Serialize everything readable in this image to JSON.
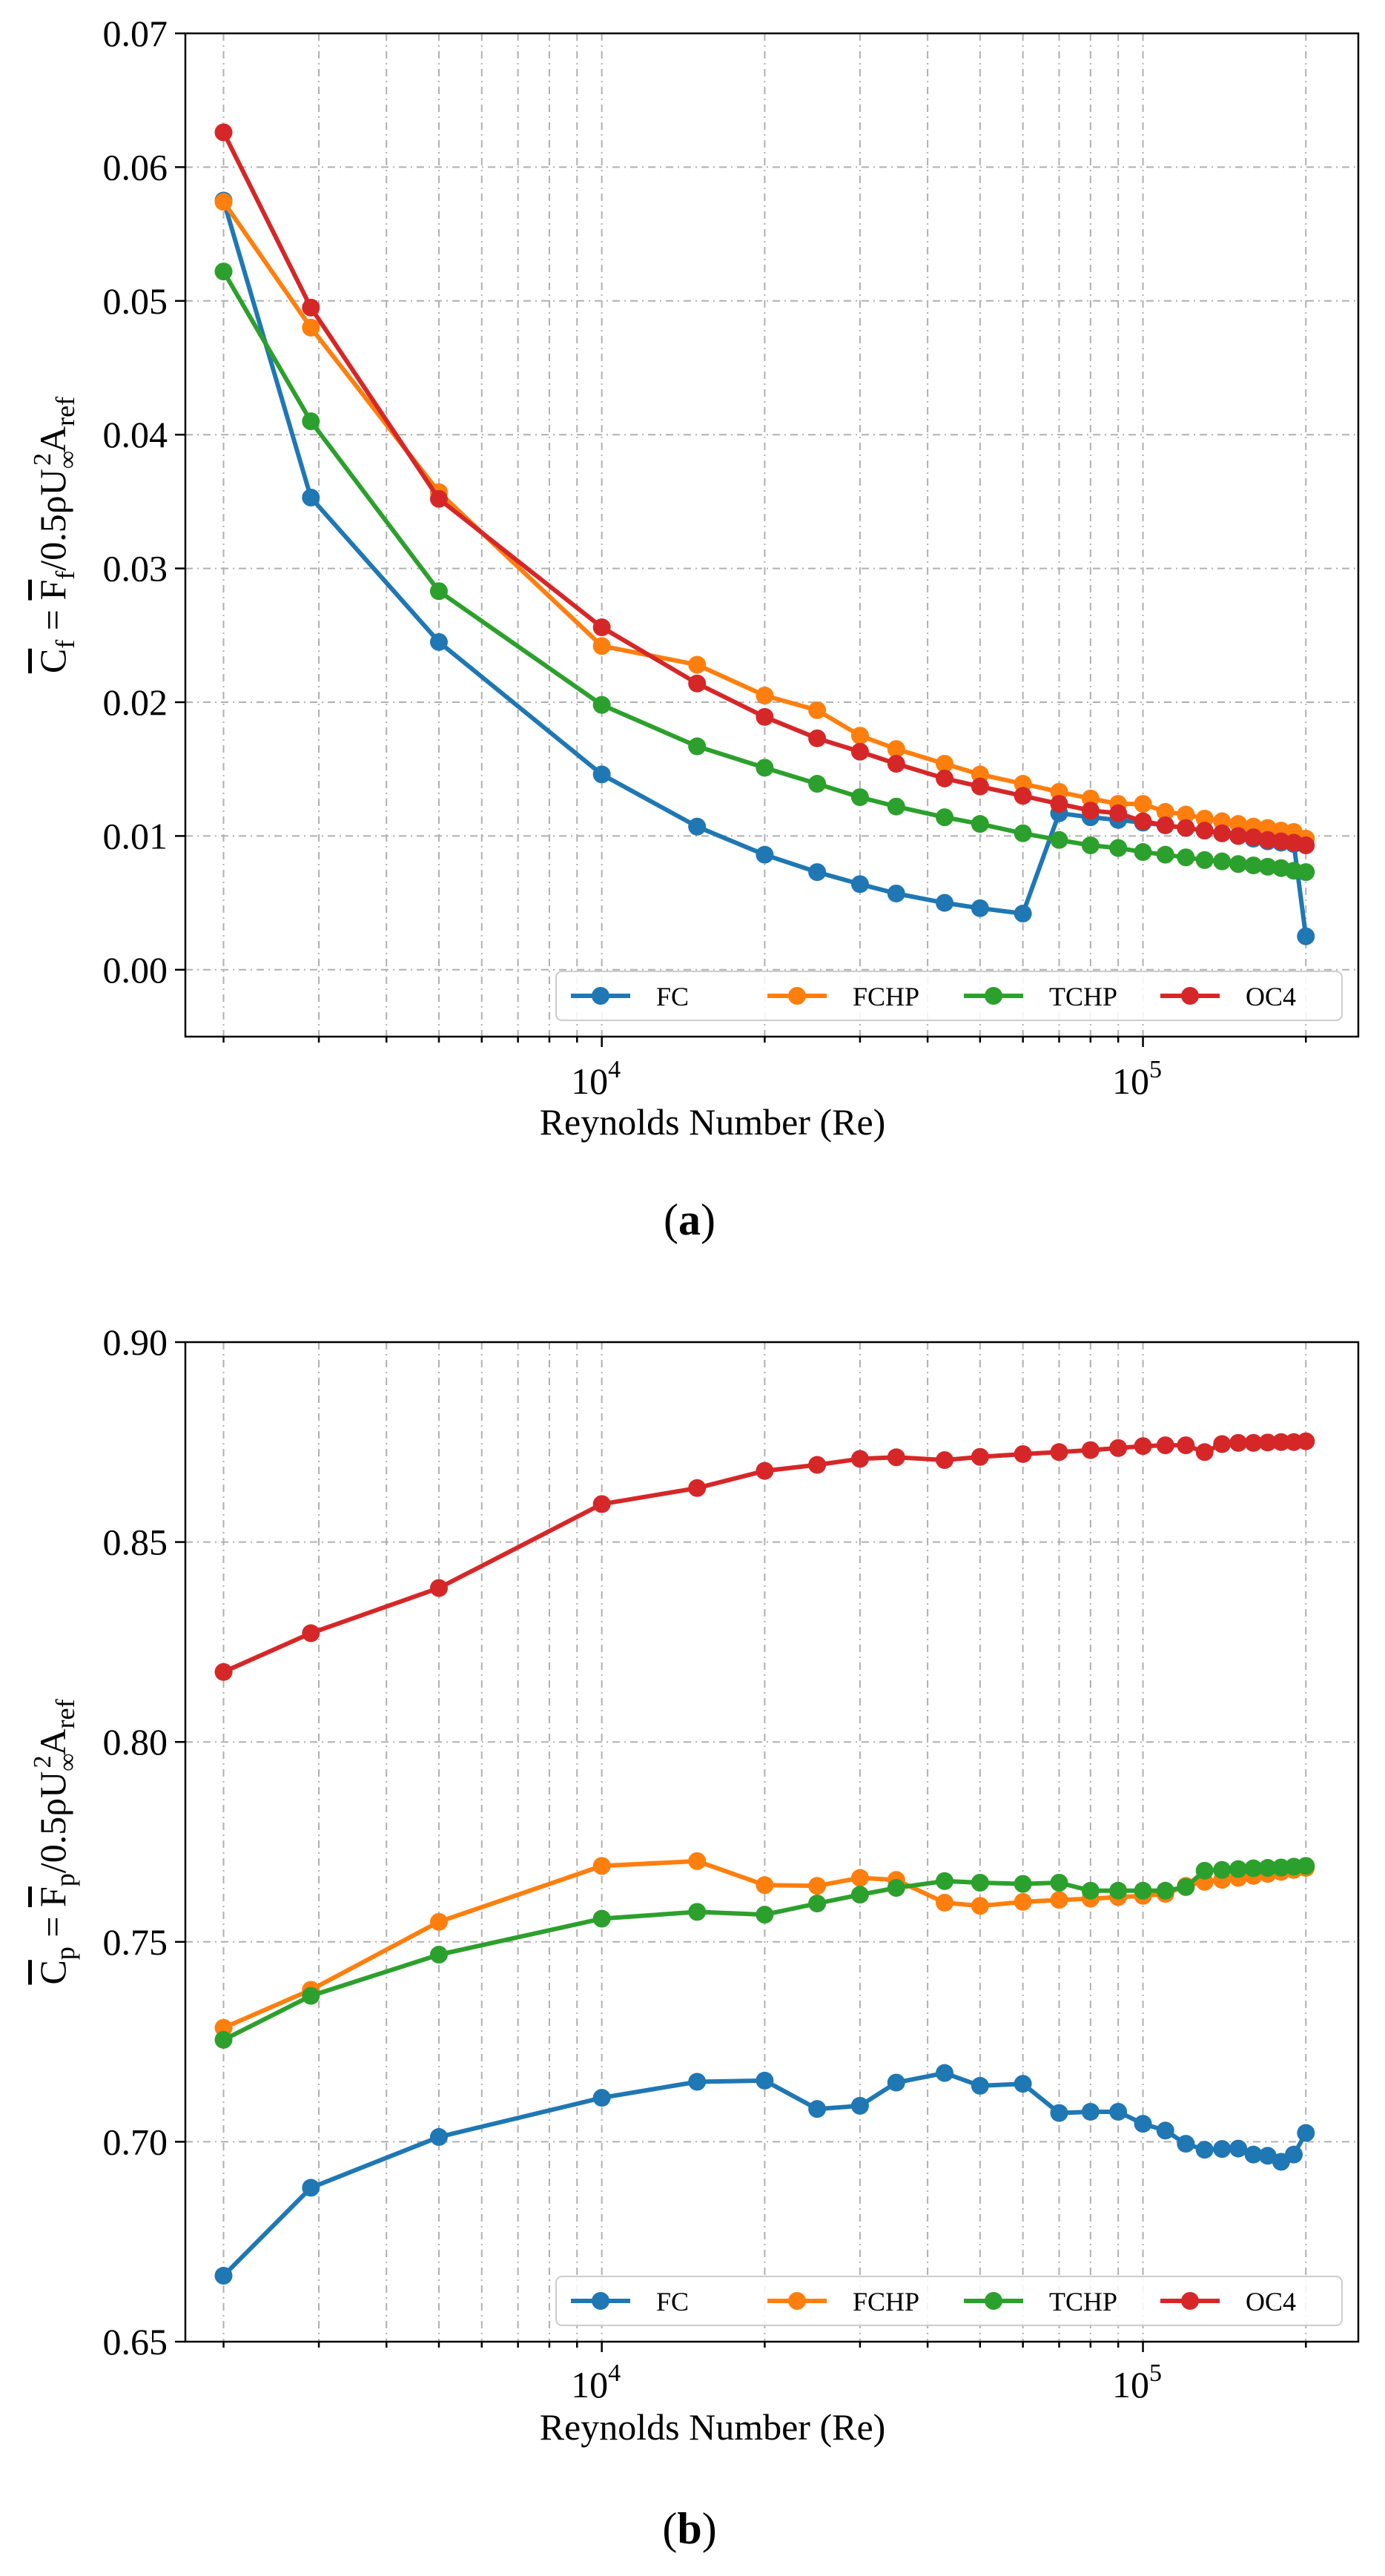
{
  "colors": {
    "FC": "#1f77b4",
    "FCHP": "#ff7f0e",
    "TCHP": "#2ca02c",
    "OC4": "#d62728"
  },
  "chart_data": [
    {
      "type": "line",
      "panel_label": "(a)",
      "panel_letter": "a",
      "xlabel": "Reynolds Number (Re)",
      "ylabel": "C_f = F_f/0.5ρU∞²A_ref",
      "ylabel_parts": {
        "c": "C",
        "c_sub": "f",
        "f": "F",
        "f_sub": "f",
        "mid": "/0.5ρU",
        "u_sub": "∞",
        "u_sup": "2",
        "a": "A",
        "a_sub": "ref"
      },
      "xscale": "log",
      "xlim": [
        1700,
        250000
      ],
      "ylim": [
        -0.005,
        0.07
      ],
      "yticks": [
        0.0,
        0.01,
        0.02,
        0.03,
        0.04,
        0.05,
        0.06,
        0.07
      ],
      "ytick_labels": [
        "0.00",
        "0.01",
        "0.02",
        "0.03",
        "0.04",
        "0.05",
        "0.06",
        "0.07"
      ],
      "xticks": [
        10000,
        100000
      ],
      "xtick_labels": [
        {
          "base": "10",
          "exp": "4"
        },
        {
          "base": "10",
          "exp": "5"
        }
      ],
      "legend": {
        "position": "lower-right",
        "entries": [
          "FC",
          "FCHP",
          "TCHP",
          "OC4"
        ]
      },
      "x": [
        2000,
        2900,
        5000,
        10000,
        15000,
        20000,
        25000,
        30000,
        35000,
        43000,
        50000,
        60000,
        70000,
        80000,
        90000,
        100000,
        110000,
        120000,
        130000,
        140000,
        150000,
        160000,
        170000,
        180000,
        190000,
        200000
      ],
      "series": [
        {
          "name": "FC",
          "values": [
            0.0575,
            0.0353,
            0.0245,
            0.0146,
            0.0107,
            0.0086,
            0.0073,
            0.0064,
            0.0057,
            0.005,
            0.0046,
            0.0042,
            0.0117,
            0.0114,
            0.0112,
            0.011,
            0.0108,
            0.0106,
            0.0104,
            0.0102,
            0.01,
            0.0098,
            0.0096,
            0.0095,
            0.0094,
            0.0025
          ]
        },
        {
          "name": "FCHP",
          "values": [
            0.0574,
            0.048,
            0.0357,
            0.0242,
            0.0228,
            0.0205,
            0.0194,
            0.0175,
            0.0165,
            0.0154,
            0.0146,
            0.0139,
            0.0133,
            0.0128,
            0.0124,
            0.0124,
            0.0118,
            0.0116,
            0.0113,
            0.0111,
            0.0109,
            0.0107,
            0.0106,
            0.0104,
            0.0103,
            0.0098
          ]
        },
        {
          "name": "TCHP",
          "values": [
            0.0522,
            0.041,
            0.0283,
            0.0198,
            0.0167,
            0.0151,
            0.0139,
            0.0129,
            0.0122,
            0.0114,
            0.0109,
            0.0102,
            0.0097,
            0.0093,
            0.0091,
            0.0088,
            0.0086,
            0.0084,
            0.0082,
            0.0081,
            0.0079,
            0.0078,
            0.0077,
            0.0076,
            0.0074,
            0.0073
          ]
        },
        {
          "name": "OC4",
          "values": [
            0.0626,
            0.0495,
            0.0352,
            0.0256,
            0.0214,
            0.0189,
            0.0173,
            0.0163,
            0.0154,
            0.0143,
            0.0137,
            0.013,
            0.0124,
            0.0119,
            0.0117,
            0.0111,
            0.0108,
            0.0106,
            0.0104,
            0.0102,
            0.01,
            0.0099,
            0.0097,
            0.0096,
            0.0095,
            0.0093
          ]
        }
      ]
    },
    {
      "type": "line",
      "panel_label": "(b)",
      "panel_letter": "b",
      "xlabel": "Reynolds Number (Re)",
      "ylabel": "C_p = F_p/0.5ρU∞²A_ref",
      "ylabel_parts": {
        "c": "C",
        "c_sub": "p",
        "f": "F",
        "f_sub": "p",
        "mid": "/0.5ρU",
        "u_sub": "∞",
        "u_sup": "2",
        "a": "A",
        "a_sub": "ref"
      },
      "xscale": "log",
      "xlim": [
        1700,
        250000
      ],
      "ylim": [
        0.65,
        0.9
      ],
      "yticks": [
        0.65,
        0.7,
        0.75,
        0.8,
        0.85,
        0.9
      ],
      "ytick_labels": [
        "0.65",
        "0.70",
        "0.75",
        "0.80",
        "0.85",
        "0.90"
      ],
      "xticks": [
        10000,
        100000
      ],
      "xtick_labels": [
        {
          "base": "10",
          "exp": "4"
        },
        {
          "base": "10",
          "exp": "5"
        }
      ],
      "legend": {
        "position": "lower-right",
        "entries": [
          "FC",
          "FCHP",
          "TCHP",
          "OC4"
        ]
      },
      "x": [
        2000,
        2900,
        5000,
        10000,
        15000,
        20000,
        25000,
        30000,
        35000,
        43000,
        50000,
        60000,
        70000,
        80000,
        90000,
        100000,
        110000,
        120000,
        130000,
        140000,
        150000,
        160000,
        170000,
        180000,
        190000,
        200000
      ],
      "series": [
        {
          "name": "FC",
          "values": [
            0.6665,
            0.6885,
            0.7012,
            0.711,
            0.715,
            0.7153,
            0.7082,
            0.709,
            0.7148,
            0.7172,
            0.714,
            0.7145,
            0.7072,
            0.7075,
            0.7075,
            0.7045,
            0.7028,
            0.6995,
            0.698,
            0.6982,
            0.6983,
            0.6968,
            0.6965,
            0.695,
            0.6968,
            0.7022
          ]
        },
        {
          "name": "FCHP",
          "values": [
            0.7285,
            0.738,
            0.755,
            0.769,
            0.7702,
            0.7642,
            0.764,
            0.766,
            0.7655,
            0.7598,
            0.759,
            0.76,
            0.7605,
            0.7608,
            0.7612,
            0.7615,
            0.762,
            0.764,
            0.765,
            0.7655,
            0.766,
            0.7665,
            0.767,
            0.7675,
            0.768,
            0.7685
          ]
        },
        {
          "name": "TCHP",
          "values": [
            0.7255,
            0.7365,
            0.7468,
            0.7558,
            0.7575,
            0.7568,
            0.7596,
            0.7618,
            0.7635,
            0.7652,
            0.7648,
            0.7645,
            0.7648,
            0.7628,
            0.7628,
            0.7628,
            0.7628,
            0.7637,
            0.7678,
            0.768,
            0.7682,
            0.7684,
            0.7685,
            0.7686,
            0.7688,
            0.769
          ]
        },
        {
          "name": "OC4",
          "values": [
            0.8175,
            0.8272,
            0.8385,
            0.8595,
            0.8635,
            0.8678,
            0.8693,
            0.8708,
            0.8712,
            0.8705,
            0.8713,
            0.872,
            0.8725,
            0.873,
            0.8735,
            0.874,
            0.8742,
            0.8742,
            0.8725,
            0.8745,
            0.8748,
            0.8748,
            0.8749,
            0.875,
            0.875,
            0.8752
          ]
        }
      ]
    }
  ]
}
